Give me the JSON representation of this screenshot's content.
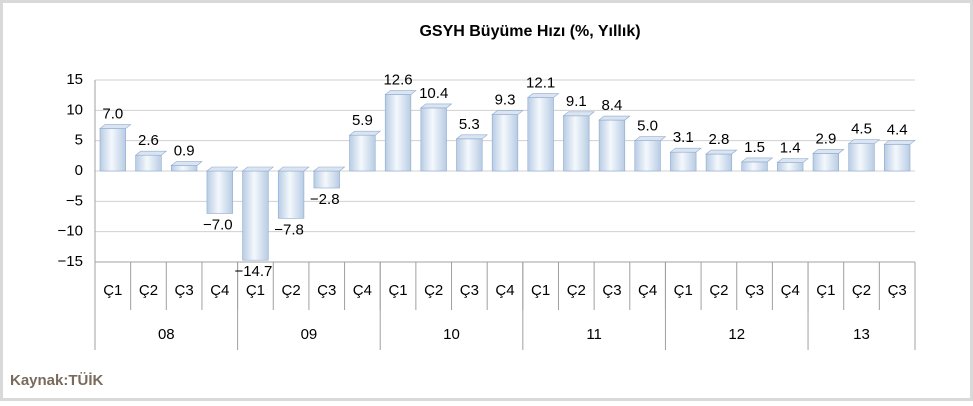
{
  "chart_data": {
    "type": "bar",
    "title": "GSYH Büyüme Hızı (%, Yıllık)",
    "source": "Kaynak:TÜİK",
    "groups": [
      {
        "label": "08",
        "quarters": [
          "Ç1",
          "Ç2",
          "Ç3",
          "Ç4"
        ]
      },
      {
        "label": "09",
        "quarters": [
          "Ç1",
          "Ç2",
          "Ç3",
          "Ç4"
        ]
      },
      {
        "label": "10",
        "quarters": [
          "Ç1",
          "Ç2",
          "Ç3",
          "Ç4"
        ]
      },
      {
        "label": "11",
        "quarters": [
          "Ç1",
          "Ç2",
          "Ç3",
          "Ç4"
        ]
      },
      {
        "label": "12",
        "quarters": [
          "Ç1",
          "Ç2",
          "Ç3",
          "Ç4"
        ]
      },
      {
        "label": "13",
        "quarters": [
          "Ç1",
          "Ç2",
          "Ç3"
        ]
      }
    ],
    "values": [
      7.0,
      2.6,
      0.9,
      -7.0,
      -14.7,
      -7.8,
      -2.8,
      5.9,
      12.6,
      10.4,
      5.3,
      9.3,
      12.1,
      9.1,
      8.4,
      5.0,
      3.1,
      2.8,
      1.5,
      1.4,
      2.9,
      4.5,
      4.4
    ],
    "value_labels": [
      "7.0",
      "2.6",
      "0.9",
      "−7.0",
      "−14.7",
      "−7.8",
      "−2.8",
      "5.9",
      "12.6",
      "10.4",
      "5.3",
      "9.3",
      "12.1",
      "9.1",
      "8.4",
      "5.0",
      "3.1",
      "2.8",
      "1.5",
      "1.4",
      "2.9",
      "4.5",
      "4.4"
    ],
    "color": "#b8cce4",
    "ylim": [
      -15,
      15
    ],
    "yticks": [
      {
        "value": -15,
        "label": "−15"
      },
      {
        "value": -10,
        "label": "−10"
      },
      {
        "value": -5,
        "label": "−5"
      },
      0,
      5,
      10,
      15
    ],
    "grid": true
  }
}
